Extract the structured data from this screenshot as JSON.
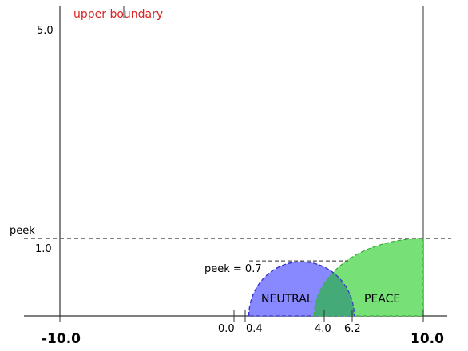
{
  "chart_data": {
    "type": "area",
    "x_range": [
      -10.0,
      10.0
    ],
    "y_range": [
      0,
      5.0
    ],
    "x_tick_labels": [
      {
        "x": -10.0,
        "label": "-10.0",
        "bold": true
      },
      {
        "x": 0.0,
        "label": "0.0",
        "bold": false
      },
      {
        "x": 0.4,
        "label": "0.4",
        "bold": false
      },
      {
        "x": 4.0,
        "label": "4.0",
        "bold": false
      },
      {
        "x": 6.2,
        "label": "6.2",
        "bold": false
      },
      {
        "x": 10.0,
        "label": "10.0",
        "bold": true
      }
    ],
    "y_tick_labels": [
      {
        "y": 5.0,
        "label": "5.0"
      },
      {
        "y": 1.0,
        "label": "1.0"
      }
    ],
    "series": [
      {
        "name": "NEUTRAL",
        "x_start": 0.4,
        "x_end": 6.2,
        "peak_x": 3.0,
        "peak_y": 0.7,
        "shape": "arc",
        "color": "#8888ff",
        "edge_color": "#3333cc"
      },
      {
        "name": "PEACE",
        "x_start": 4.0,
        "x_end": 10.0,
        "peak_x": 10.0,
        "peak_y": 1.0,
        "shape": "quarter",
        "color": "#77e177",
        "edge_color": "#33aa33"
      }
    ],
    "overlap_color": "#44aa77",
    "reference_lines": [
      {
        "y": 5.0,
        "label": "upper boundary",
        "color": "#dd2222",
        "style": "dotted"
      },
      {
        "y": 1.0,
        "label": "peek",
        "color": "#555555",
        "style": "dashed"
      },
      {
        "y": 0.7,
        "label": "peek = 0.7",
        "color": "#555555",
        "style": "dashed"
      }
    ]
  }
}
